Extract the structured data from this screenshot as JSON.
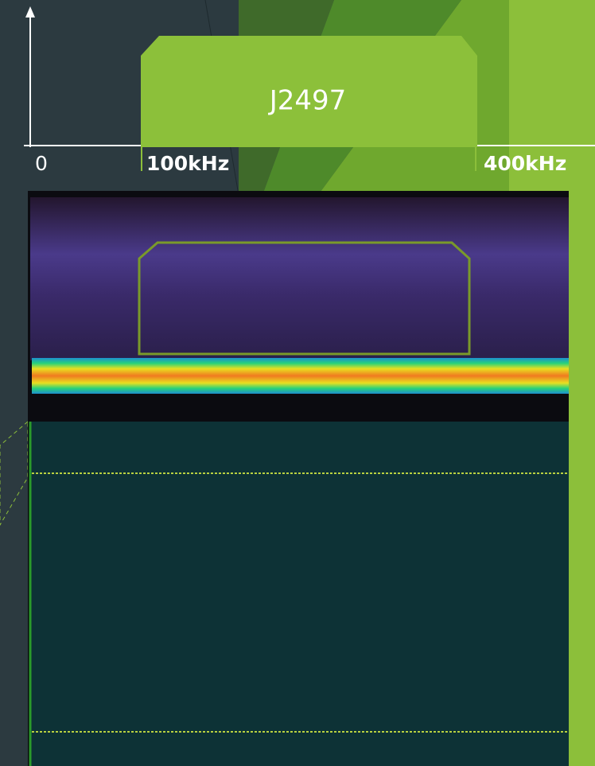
{
  "diagram": {
    "label": "J2497",
    "axis_labels": [
      "0",
      "100kHz",
      "400kHz"
    ]
  }
}
